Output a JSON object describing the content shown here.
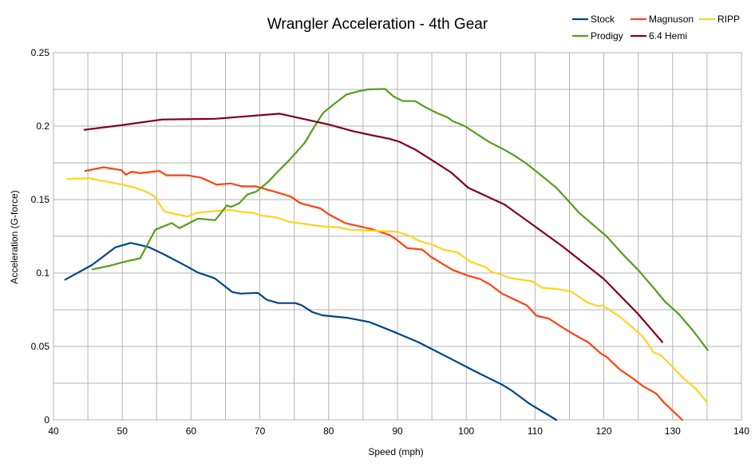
{
  "chart_data": {
    "type": "line",
    "title": "Wrangler Acceleration - 4th Gear",
    "xlabel": "Speed (mph)",
    "ylabel": "Acceleration (G-force)",
    "xlim": [
      40,
      140
    ],
    "ylim": [
      0,
      0.25
    ],
    "xticks": [
      "40",
      "50",
      "60",
      "70",
      "80",
      "90",
      "100",
      "110",
      "120",
      "130",
      "140"
    ],
    "yticks": [
      "0",
      "0.05",
      "0.1",
      "0.15",
      "0.2",
      "0.25"
    ],
    "grid": true,
    "legend_position": "top-right",
    "series": [
      {
        "name": "Stock",
        "color": "#004586",
        "x": [
          41.7,
          45.6,
          49.0,
          51.2,
          52.5,
          53.9,
          56.0,
          59.2,
          61.0,
          63.4,
          66.0,
          67.2,
          69.7,
          71.0,
          72.7,
          75.2,
          76.1,
          77.6,
          79.1,
          82.7,
          86.0,
          89.2,
          93.0,
          97.6,
          101.1,
          105.2,
          106.6,
          109.2,
          113.1
        ],
        "y": [
          0.0955,
          0.1055,
          0.1175,
          0.1205,
          0.1192,
          0.1175,
          0.1128,
          0.105,
          0.1003,
          0.0965,
          0.087,
          0.086,
          0.0865,
          0.0818,
          0.0795,
          0.0795,
          0.078,
          0.0735,
          0.0712,
          0.0695,
          0.0665,
          0.0605,
          0.053,
          0.042,
          0.0335,
          0.024,
          0.02,
          0.011,
          0.0
        ]
      },
      {
        "name": "Magnuson",
        "color": "#ff420e",
        "x": [
          44.6,
          47.3,
          49.9,
          50.5,
          51.4,
          52.6,
          55.4,
          56.4,
          59.5,
          61.4,
          63.7,
          65.8,
          67.4,
          69.4,
          70.2,
          72.8,
          74.5,
          75.9,
          78.8,
          80.0,
          82.4,
          86.2,
          88.8,
          89.8,
          91.4,
          93.6,
          94.9,
          97.0,
          98.1,
          100.4,
          102.0,
          103.5,
          105.2,
          106.1,
          108.8,
          110.2,
          112.0,
          114.3,
          116.5,
          117.7,
          119.6,
          120.4,
          122.4,
          124.3,
          125.7,
          127.6,
          128.7,
          131.4
        ],
        "y": [
          0.1695,
          0.172,
          0.17,
          0.167,
          0.169,
          0.168,
          0.1695,
          0.1665,
          0.1665,
          0.165,
          0.1602,
          0.161,
          0.159,
          0.159,
          0.158,
          0.1545,
          0.152,
          0.1475,
          0.144,
          0.14,
          0.134,
          0.13,
          0.126,
          0.123,
          0.117,
          0.116,
          0.111,
          0.105,
          0.102,
          0.098,
          0.096,
          0.092,
          0.086,
          0.084,
          0.078,
          0.071,
          0.069,
          0.062,
          0.056,
          0.053,
          0.045,
          0.043,
          0.034,
          0.028,
          0.023,
          0.018,
          0.012,
          0.0
        ]
      },
      {
        "name": "RIPP",
        "color": "#ffd320",
        "x": [
          42.0,
          45.2,
          48.0,
          50.2,
          51.6,
          53.4,
          54.6,
          56.1,
          57.4,
          59.5,
          60.8,
          63.0,
          65.6,
          67.5,
          69.0,
          70.3,
          72.2,
          74.2,
          75.6,
          78.7,
          81.6,
          83.1,
          84.7,
          86.2,
          89.3,
          90.1,
          91.9,
          93.1,
          95.2,
          96.7,
          98.7,
          100.5,
          102.8,
          103.6,
          105.0,
          106.4,
          109.5,
          111.0,
          113.3,
          114.0,
          115.2,
          117.6,
          119.1,
          119.8,
          122.4,
          124.4,
          125.6,
          126.4,
          127.2,
          128.3,
          129.8,
          131.4,
          133.2,
          135.0
        ],
        "y": [
          0.164,
          0.1645,
          0.162,
          0.16,
          0.1585,
          0.1555,
          0.1525,
          0.142,
          0.1405,
          0.1385,
          0.141,
          0.142,
          0.143,
          0.1415,
          0.141,
          0.139,
          0.138,
          0.135,
          0.134,
          0.132,
          0.131,
          0.1295,
          0.1292,
          0.1288,
          0.1283,
          0.128,
          0.125,
          0.122,
          0.119,
          0.116,
          0.114,
          0.108,
          0.104,
          0.101,
          0.099,
          0.0965,
          0.0945,
          0.09,
          0.089,
          0.0885,
          0.0875,
          0.08,
          0.0775,
          0.078,
          0.07,
          0.062,
          0.057,
          0.052,
          0.046,
          0.044,
          0.037,
          0.029,
          0.022,
          0.012
        ]
      },
      {
        "name": "Prodigy",
        "color": "#579d1c",
        "x": [
          45.7,
          48.2,
          50.2,
          52.6,
          54.8,
          57.2,
          58.3,
          61.0,
          63.5,
          65.2,
          65.8,
          67.0,
          68.2,
          69.5,
          71.2,
          72.4,
          74.3,
          76.5,
          78.1,
          79.2,
          80.9,
          82.6,
          84.1,
          85.7,
          88.2,
          89.4,
          90.7,
          92.6,
          94.0,
          95.7,
          97.3,
          98.0,
          99.8,
          101.1,
          103.4,
          105.5,
          107.0,
          108.6,
          110.5,
          113.1,
          114.1,
          116.4,
          118.4,
          120.4,
          122.9,
          125.0,
          127.2,
          128.8,
          130.9,
          133.1,
          135.1
        ],
        "y": [
          0.1025,
          0.105,
          0.1075,
          0.11,
          0.1295,
          0.134,
          0.1305,
          0.137,
          0.136,
          0.146,
          0.145,
          0.1475,
          0.1535,
          0.1555,
          0.162,
          0.168,
          0.177,
          0.1885,
          0.201,
          0.209,
          0.2155,
          0.2215,
          0.2235,
          0.225,
          0.2253,
          0.2203,
          0.2172,
          0.217,
          0.213,
          0.209,
          0.206,
          0.2035,
          0.2,
          0.196,
          0.189,
          0.184,
          0.18,
          0.175,
          0.168,
          0.158,
          0.153,
          0.141,
          0.133,
          0.125,
          0.112,
          0.102,
          0.09,
          0.081,
          0.072,
          0.06,
          0.0475
        ]
      },
      {
        "name": "6.4 Hemi",
        "color": "#7e0021",
        "x": [
          44.5,
          49.6,
          55.8,
          63.5,
          72.9,
          80.1,
          83.6,
          86.6,
          88.7,
          90.2,
          92.6,
          95.8,
          97.8,
          100.3,
          105.6,
          113.9,
          120.0,
          125.0,
          128.5
        ],
        "y": [
          0.1975,
          0.2005,
          0.2045,
          0.205,
          0.2085,
          0.201,
          0.1965,
          0.1935,
          0.1915,
          0.1895,
          0.184,
          0.1745,
          0.1685,
          0.158,
          0.1465,
          0.1185,
          0.096,
          0.072,
          0.053
        ]
      }
    ]
  }
}
